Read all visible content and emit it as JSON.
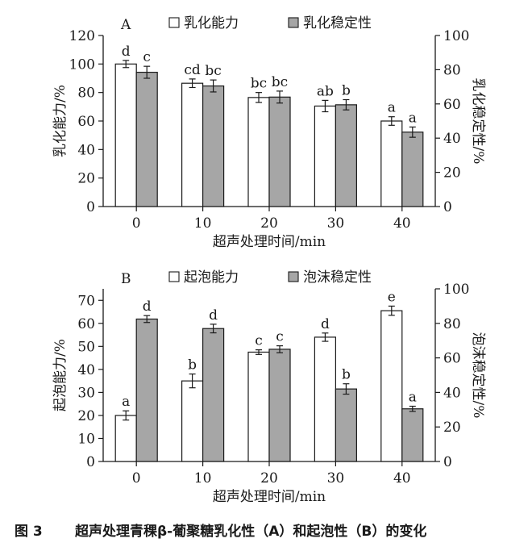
{
  "caption": {
    "label": "图 3",
    "text": "超声处理青稞β-葡聚糖乳化性（A）和起泡性（B）的变化"
  },
  "colors": {
    "primary_fill": "#ffffff",
    "secondary_fill": "#a6a6a6",
    "stroke": "#1a1a1a"
  },
  "chart_data": [
    {
      "panel": "A",
      "type": "bar",
      "xlabel": "超声处理时间/min",
      "ylabel_left": "乳化能力/%",
      "ylabel_right": "乳化稳定性/%",
      "categories": [
        "0",
        "10",
        "20",
        "30",
        "40"
      ],
      "ylim_left": [
        0,
        120
      ],
      "yticks_left": [
        "0",
        "20",
        "40",
        "60",
        "80",
        "100",
        "120"
      ],
      "ylim_right": [
        0,
        100
      ],
      "yticks_right": [
        "0",
        "20",
        "40",
        "60",
        "80",
        "100"
      ],
      "legend_position": "top",
      "series": [
        {
          "name": "乳化能力",
          "axis": "left",
          "fill": "#ffffff",
          "values": [
            100,
            86.5,
            76.5,
            70.5,
            60
          ],
          "errors": [
            2.5,
            3,
            3.5,
            4,
            3
          ],
          "letters": [
            "d",
            "cd",
            "bc",
            "ab",
            "a"
          ]
        },
        {
          "name": "乳化稳定性",
          "axis": "right",
          "fill": "#a6a6a6",
          "values": [
            78.5,
            70.5,
            64,
            59.5,
            43.5
          ],
          "errors": [
            3.5,
            3.5,
            3.5,
            3,
            3
          ],
          "letters": [
            "c",
            "bc",
            "bc",
            "b",
            "a"
          ]
        }
      ]
    },
    {
      "panel": "B",
      "type": "bar",
      "xlabel": "超声处理时间/min",
      "ylabel_left": "起泡能力/%",
      "ylabel_right": "泡沫稳定性/%",
      "categories": [
        "0",
        "10",
        "20",
        "30",
        "40"
      ],
      "ylim_left": [
        0,
        75
      ],
      "yticks_left": [
        "0",
        "10",
        "20",
        "30",
        "40",
        "50",
        "60",
        "70"
      ],
      "ylim_right": [
        0,
        100
      ],
      "yticks_right": [
        "0",
        "20",
        "40",
        "60",
        "80",
        "100"
      ],
      "legend_position": "top",
      "series": [
        {
          "name": "起泡能力",
          "axis": "left",
          "fill": "#ffffff",
          "values": [
            20,
            35,
            47.5,
            54,
            65.5
          ],
          "errors": [
            2,
            3,
            1,
            1.8,
            2
          ],
          "letters": [
            "a",
            "b",
            "c",
            "d",
            "e"
          ]
        },
        {
          "name": "泡沫稳定性",
          "axis": "right",
          "fill": "#a6a6a6",
          "values": [
            82.5,
            77,
            65,
            42,
            30.5
          ],
          "errors": [
            2,
            2.5,
            2,
            3,
            1.5
          ],
          "letters": [
            "d",
            "d",
            "c",
            "b",
            "a"
          ]
        }
      ]
    }
  ]
}
